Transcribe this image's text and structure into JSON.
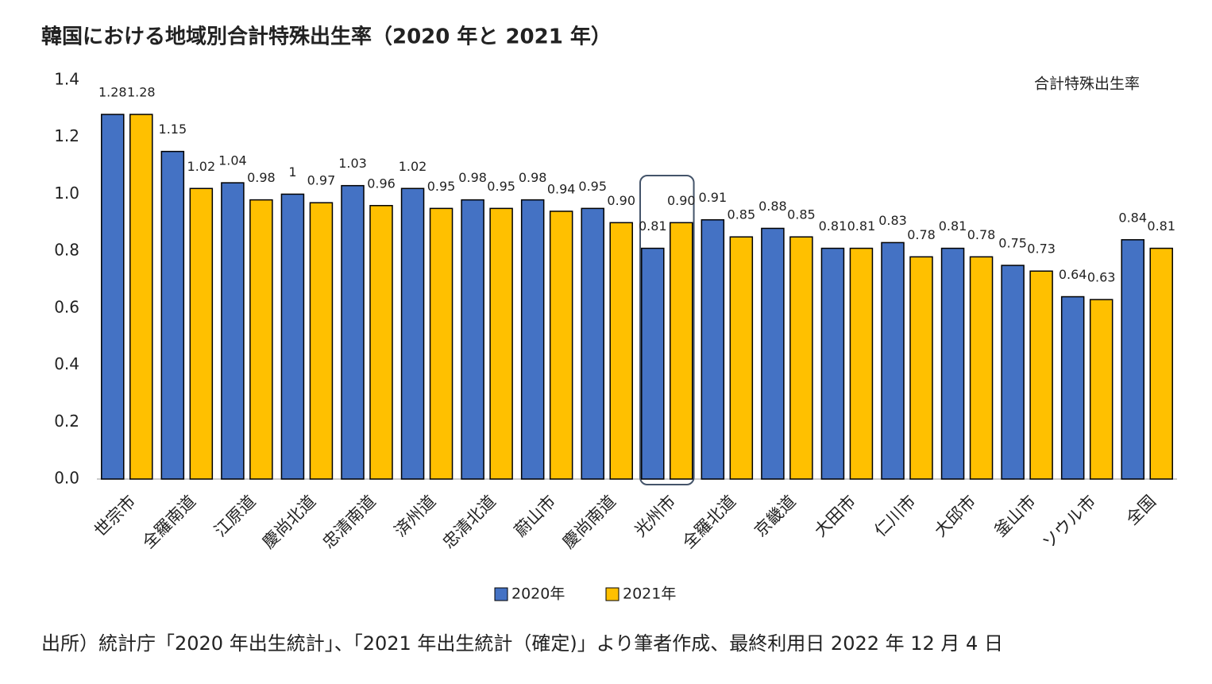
{
  "chart_data": {
    "type": "bar",
    "title": "韓国における地域別合計特殊出生率（2020 年と 2021 年）",
    "y_annotation": "合計特殊出生率",
    "source": "出所）統計庁「2020 年出生統計」、「2021 年出生統計（確定)」より筆者作成、最終利用日 2022 年 12 月 4 日",
    "categories": [
      "世宗市",
      "全羅南道",
      "江原道",
      "慶尚北道",
      "忠清南道",
      "済州道",
      "忠清北道",
      "蔚山市",
      "慶尚南道",
      "光州市",
      "全羅北道",
      "京畿道",
      "大田市",
      "仁川市",
      "大邱市",
      "釜山市",
      "ソウル市",
      "全国"
    ],
    "series": [
      {
        "name": "2020年",
        "color": "#4472c4",
        "values": [
          1.28,
          1.15,
          1.04,
          1,
          1.03,
          1.02,
          0.98,
          0.98,
          0.95,
          0.81,
          0.91,
          0.88,
          0.81,
          0.83,
          0.81,
          0.75,
          0.64,
          0.84
        ]
      },
      {
        "name": "2021年",
        "color": "#ffc000",
        "values": [
          1.28,
          1.02,
          0.98,
          0.97,
          0.96,
          0.95,
          0.95,
          0.94,
          0.9,
          0.9,
          0.85,
          0.85,
          0.81,
          0.78,
          0.78,
          0.73,
          0.63,
          0.81
        ],
        "value_labels": [
          "1.28",
          "1.02",
          "0.98",
          "0.97",
          "0.96",
          "0.95",
          "0.95",
          "0.94",
          "0.90",
          "0.90",
          "0.85",
          "0.85",
          "0.81",
          "0.78",
          "0.78",
          "0.73",
          "0.63",
          "0.81"
        ]
      }
    ],
    "ylim": [
      0,
      1.4
    ],
    "yticks": [
      {
        "value": 0,
        "label": "0.0"
      },
      0.2,
      0.4,
      0.6,
      0.8,
      {
        "value": 1,
        "label": "1.0"
      },
      1.2,
      1.4
    ],
    "highlight_category": "光州市",
    "legend": "bottom"
  }
}
